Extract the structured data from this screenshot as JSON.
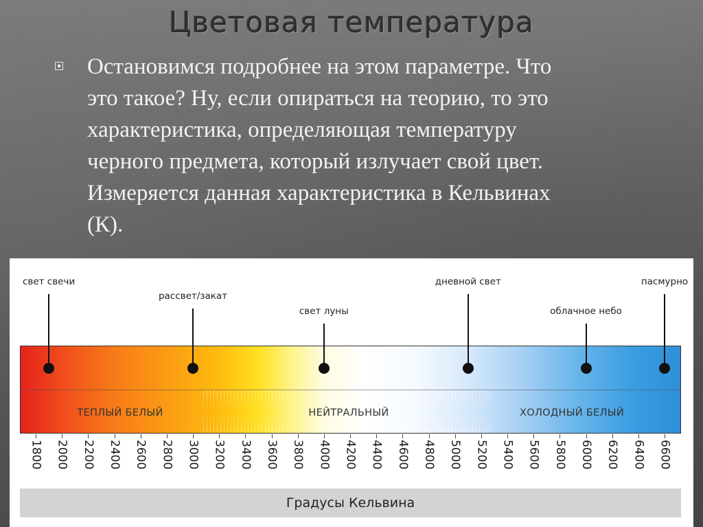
{
  "slide": {
    "title": "Цветовая температура",
    "bullet_lines": [
      "Остановимся подробнее на этом параметре. Что",
      "это такое? Ну, если опираться на теорию, то это",
      "характеристика, определяющая температуру",
      "черного предмета, который излучает свой цвет.",
      "Измеряется данная характеристика в Кельвинах",
      "(К)."
    ]
  },
  "diagram": {
    "markers": [
      {
        "label": "свет свечи",
        "kelvin": 1900
      },
      {
        "label": "рассвет/закат",
        "kelvin": 3000
      },
      {
        "label": "свет луны",
        "kelvin": 4000
      },
      {
        "label": "дневной свет",
        "kelvin": 5100
      },
      {
        "label": "облачное небо",
        "kelvin": 6000
      },
      {
        "label": "пасмурно",
        "kelvin": 6600
      }
    ],
    "zones": [
      {
        "label": "ТЕПЛЫЙ БЕЛЫЙ"
      },
      {
        "label": "НЕЙТРАЛЬНЫЙ"
      },
      {
        "label": "ХОЛОДНЫЙ БЕЛЫЙ"
      }
    ],
    "ticks": [
      "1800",
      "2000",
      "2200",
      "2400",
      "2600",
      "2800",
      "3000",
      "3200",
      "3400",
      "3600",
      "3800",
      "4000",
      "4200",
      "4400",
      "4600",
      "4800",
      "5000",
      "5200",
      "5400",
      "5600",
      "5800",
      "6000",
      "6200",
      "6400",
      "6600"
    ],
    "axis_label": "Градусы Кельвина"
  }
}
